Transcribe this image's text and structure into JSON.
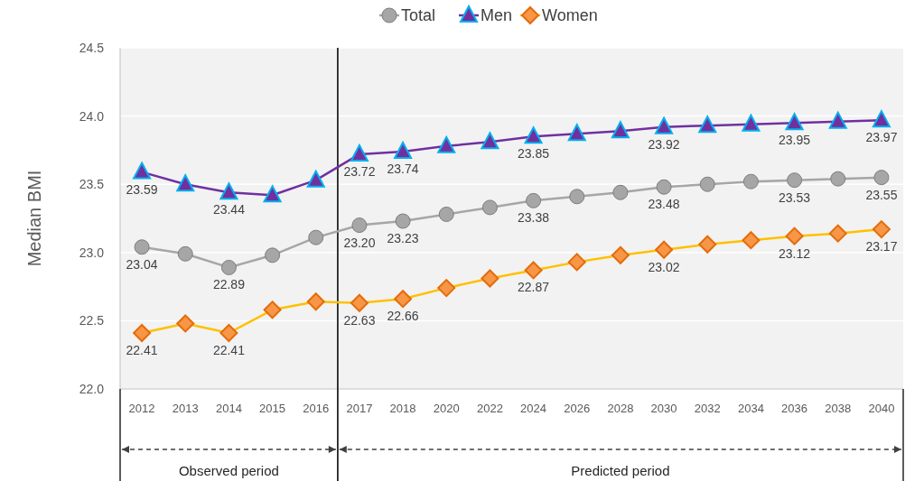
{
  "chart_data": {
    "type": "line",
    "ylabel": "Median BMI",
    "categories": [
      "2012",
      "2013",
      "2014",
      "2015",
      "2016",
      "2017",
      "2018",
      "2020",
      "2022",
      "2024",
      "2026",
      "2028",
      "2030",
      "2032",
      "2034",
      "2036",
      "2038",
      "2040"
    ],
    "series": [
      {
        "name": "Total",
        "color": "#a6a6a6",
        "marker": "circle",
        "values": [
          23.04,
          22.99,
          22.89,
          22.98,
          23.11,
          23.2,
          23.23,
          23.28,
          23.33,
          23.38,
          23.41,
          23.44,
          23.48,
          23.5,
          23.52,
          23.53,
          23.54,
          23.55
        ],
        "value_labels": [
          "23.04",
          null,
          "22.89",
          null,
          null,
          "23.20",
          "23.23",
          null,
          null,
          "23.38",
          null,
          null,
          "23.48",
          null,
          null,
          "23.53",
          null,
          "23.55"
        ]
      },
      {
        "name": "Men",
        "color": "#7030a0",
        "marker": "triangle",
        "values": [
          23.59,
          23.5,
          23.44,
          23.42,
          23.53,
          23.72,
          23.74,
          23.78,
          23.81,
          23.85,
          23.87,
          23.89,
          23.92,
          23.93,
          23.94,
          23.95,
          23.96,
          23.97
        ],
        "value_labels": [
          "23.59",
          null,
          "23.44",
          null,
          null,
          "23.72",
          "23.74",
          null,
          null,
          "23.85",
          null,
          null,
          "23.92",
          null,
          null,
          "23.95",
          null,
          "23.97"
        ]
      },
      {
        "name": "Women",
        "color": "#ffc000",
        "marker": "diamond",
        "values": [
          22.41,
          22.48,
          22.41,
          22.58,
          22.64,
          22.63,
          22.66,
          22.74,
          22.81,
          22.87,
          22.93,
          22.98,
          23.02,
          23.06,
          23.09,
          23.12,
          23.14,
          23.17
        ],
        "value_labels": [
          "22.41",
          null,
          "22.41",
          null,
          null,
          "22.63",
          "22.66",
          null,
          null,
          "22.87",
          null,
          null,
          "23.02",
          null,
          null,
          "23.12",
          null,
          "23.17"
        ]
      }
    ],
    "ylim": [
      22.0,
      24.5
    ],
    "yticks": [
      {
        "value": 22.0,
        "label": "22.0"
      },
      {
        "value": 22.5,
        "label": "22.5"
      },
      {
        "value": 23.0,
        "label": "23.0"
      },
      {
        "value": 23.5,
        "label": "23.5"
      },
      {
        "value": 24.0,
        "label": "24.0"
      },
      {
        "value": 24.5,
        "label": "24.5"
      }
    ],
    "annotations": [
      "Observed period",
      "Predicted period"
    ],
    "grid": "y",
    "legend": "top",
    "line_style": "solid"
  }
}
